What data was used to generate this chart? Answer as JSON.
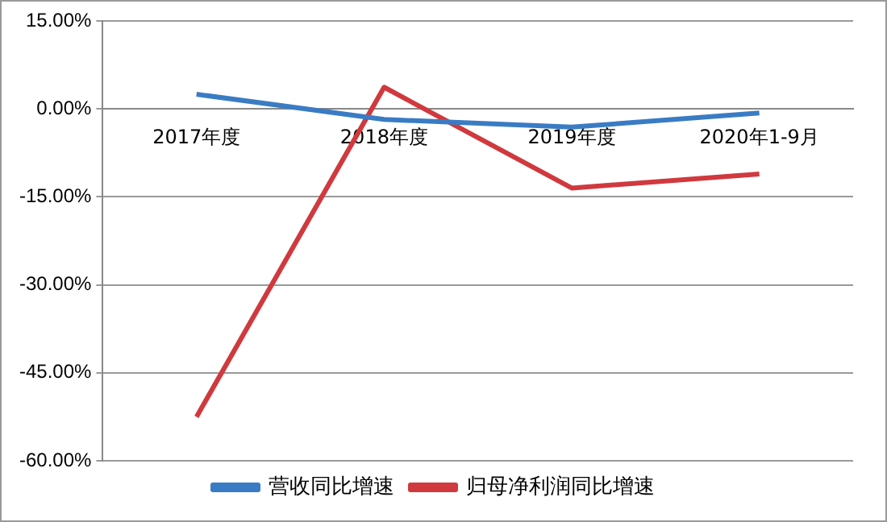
{
  "chart_data": {
    "type": "line",
    "categories": [
      "2017年度",
      "2018年度",
      "2019年度",
      "2020年1-9月"
    ],
    "series": [
      {
        "name": "营收同比增速",
        "color": "#3a7cc4",
        "values": [
          2.5,
          -1.8,
          -3.1,
          -0.7
        ]
      },
      {
        "name": "归母净利润同比增速",
        "color": "#d0393e",
        "values": [
          -52.5,
          3.7,
          -13.5,
          -11.1
        ]
      }
    ],
    "ylim": [
      -60,
      15
    ],
    "yticks": [
      {
        "value": 15,
        "label": "15.00%"
      },
      {
        "value": 0,
        "label": "0.00%"
      },
      {
        "value": -15,
        "label": "-15.00%"
      },
      {
        "value": -30,
        "label": "-30.00%"
      },
      {
        "value": -45,
        "label": "-45.00%"
      },
      {
        "value": -60,
        "label": "-60.00%"
      }
    ],
    "grid": "y",
    "legend": "bottom",
    "marker": "none",
    "line_style": "solid"
  }
}
